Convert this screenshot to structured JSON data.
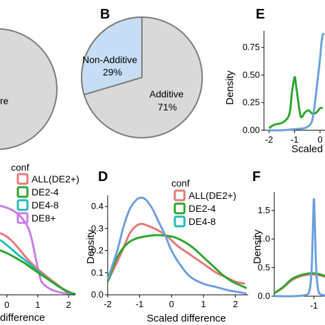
{
  "chart_data": [
    {
      "panel": "A",
      "type": "pie",
      "slice_labels": [
        "",
        "re"
      ],
      "values": [
        29,
        71
      ],
      "colors": [
        "#c6ddf3",
        "#d9d9d9"
      ]
    },
    {
      "panel": "B",
      "type": "pie",
      "labels": [
        "Non-Additive",
        "Additive"
      ],
      "percent_labels": [
        "29%",
        "71%"
      ],
      "values": [
        29,
        71
      ],
      "colors": [
        "#c6ddf3",
        "#d9d9d9"
      ]
    },
    {
      "panel": "C",
      "type": "line",
      "xlabel": "difference",
      "xticks": [
        "0",
        "1",
        "2"
      ],
      "legend_title": "conf",
      "legend": [
        "ALL(DE2+)",
        "DE2-4",
        "DE4-8",
        "DE8+"
      ],
      "colors": [
        "#e8777a",
        "#2da52d",
        "#1fbcbc",
        "#c77ce8"
      ]
    },
    {
      "panel": "D",
      "type": "line",
      "xlabel": "Scaled difference",
      "ylabel": "Density",
      "xlim": [
        -2,
        2.4
      ],
      "ylim": [
        0,
        0.45
      ],
      "xticks": [
        "-2",
        "-1",
        "0",
        "1",
        "2"
      ],
      "yticks": [
        "0.0",
        "0.1",
        "0.2",
        "0.3",
        "0.4"
      ],
      "legend_title": "conf",
      "legend": [
        "ALL(DE2+)",
        "DE2-4",
        "DE4-8"
      ],
      "colors": [
        "#e8777a",
        "#2da52d",
        "#1fbcbc"
      ],
      "series": [
        {
          "color": "#e8777a",
          "x": [
            -2,
            -1.6,
            -1.3,
            -1.0,
            -0.7,
            -0.4,
            -0.1,
            0.2,
            0.5,
            0.8,
            1.1,
            1.4,
            1.7,
            2.0,
            2.3
          ],
          "y": [
            0.06,
            0.18,
            0.28,
            0.32,
            0.31,
            0.29,
            0.26,
            0.22,
            0.19,
            0.16,
            0.13,
            0.1,
            0.08,
            0.06,
            0.05
          ]
        },
        {
          "color": "#2da52d",
          "x": [
            -2,
            -1.7,
            -1.4,
            -1.1,
            -0.8,
            -0.5,
            -0.2,
            0.1,
            0.4,
            0.7,
            1.0,
            1.3,
            1.6,
            1.9,
            2.2,
            2.35
          ],
          "y": [
            0.06,
            0.17,
            0.23,
            0.255,
            0.265,
            0.27,
            0.268,
            0.26,
            0.24,
            0.21,
            0.17,
            0.13,
            0.09,
            0.06,
            0.04,
            0.03
          ]
        },
        {
          "color": "#6a9fe0",
          "x": [
            -2,
            -1.7,
            -1.5,
            -1.3,
            -1.1,
            -0.95,
            -0.8,
            -0.6,
            -0.4,
            -0.2,
            0.0,
            0.3,
            0.6,
            1.0,
            1.4,
            1.8,
            2.2,
            2.35
          ],
          "y": [
            0.07,
            0.2,
            0.31,
            0.39,
            0.43,
            0.44,
            0.43,
            0.39,
            0.33,
            0.27,
            0.2,
            0.13,
            0.08,
            0.05,
            0.035,
            0.02,
            0.01,
            0.005
          ]
        }
      ]
    },
    {
      "panel": "E",
      "type": "line",
      "xlabel": "Scaled",
      "ylabel": "Density",
      "yticks": [
        "0.00",
        "0.25",
        "0.50",
        "0.75"
      ],
      "xticks": [
        "-2",
        "-1",
        "0"
      ],
      "xlim": [
        -2.2,
        0.3
      ],
      "ylim": [
        0,
        0.9
      ],
      "series": [
        {
          "color": "#2da52d",
          "x": [
            -2.0,
            -1.8,
            -1.6,
            -1.4,
            -1.2,
            -1.1,
            -1.0,
            -0.95,
            -0.85,
            -0.75,
            -0.6,
            -0.45,
            -0.3,
            -0.15,
            0.0,
            0.1
          ],
          "y": [
            0.02,
            0.05,
            0.06,
            0.08,
            0.15,
            0.35,
            0.48,
            0.42,
            0.25,
            0.12,
            0.16,
            0.18,
            0.15,
            0.16,
            0.2,
            0.2
          ]
        },
        {
          "color": "#6a9fe0",
          "x": [
            -2.0,
            -1.5,
            -1.0,
            -0.6,
            -0.4,
            -0.3,
            -0.2,
            -0.1,
            0.0,
            0.05,
            0.1,
            0.15
          ],
          "y": [
            0.0,
            0.0,
            0.01,
            0.02,
            0.05,
            0.1,
            0.25,
            0.45,
            0.65,
            0.78,
            0.86,
            0.88
          ]
        }
      ]
    },
    {
      "panel": "F",
      "type": "line",
      "ylabel": "Density",
      "yticks": [
        "0.0",
        "0.5",
        "1.0",
        "1.5"
      ],
      "xticks": [
        "-1"
      ],
      "xlim": [
        -1.9,
        -0.5
      ],
      "ylim": [
        0,
        1.8
      ],
      "series": [
        {
          "color": "#e8777a",
          "x": [
            -1.9,
            -1.7,
            -1.5,
            -1.3,
            -1.1,
            -1.0,
            -0.9,
            -0.7,
            -0.5
          ],
          "y": [
            0.05,
            0.15,
            0.28,
            0.35,
            0.38,
            0.38,
            0.37,
            0.33,
            0.27
          ]
        },
        {
          "color": "#2da52d",
          "x": [
            -1.9,
            -1.7,
            -1.5,
            -1.3,
            -1.1,
            -1.0,
            -0.9,
            -0.7,
            -0.5
          ],
          "y": [
            0.05,
            0.16,
            0.3,
            0.37,
            0.4,
            0.4,
            0.39,
            0.34,
            0.28
          ]
        },
        {
          "color": "#6a9fe0",
          "x": [
            -1.9,
            -1.5,
            -1.2,
            -1.1,
            -1.05,
            -1.02,
            -1.0,
            -0.98,
            -0.95,
            -0.9,
            -0.8,
            -0.5
          ],
          "y": [
            0.0,
            0.0,
            0.02,
            0.1,
            0.5,
            1.3,
            1.7,
            1.3,
            0.5,
            0.1,
            0.02,
            0.0
          ]
        }
      ]
    }
  ],
  "text": {
    "panel_a": "",
    "panel_b": "B",
    "panel_d": "D",
    "panel_e": "E",
    "panel_f": "F",
    "pie_a_label": "re",
    "pie_b_nonadd": "Non-Additive",
    "pie_b_nonadd_pct": "29%",
    "pie_b_add": "Additive",
    "pie_b_add_pct": "71%"
  }
}
